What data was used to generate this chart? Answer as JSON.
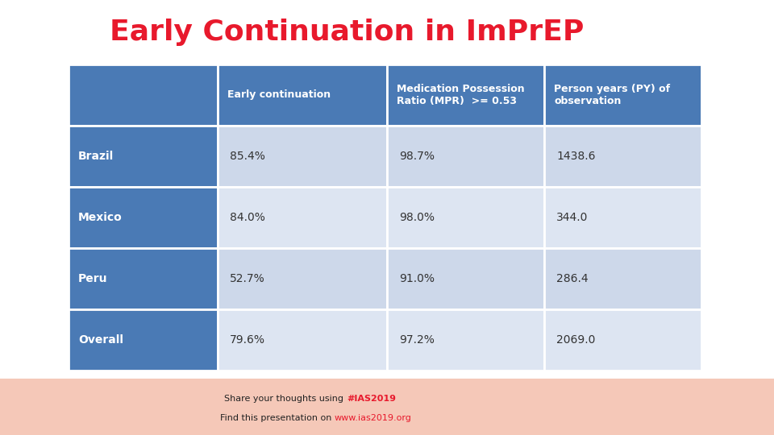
{
  "title": "Early Continuation in ImPrEP",
  "title_color": "#e8192c",
  "bg_color": "#ffffff",
  "footer_bg_left": "#f2c4b0",
  "footer_bg_right": "#f8ddd5",
  "header_bg": "#4a7ab5",
  "row_label_bg": "#4a7ab5",
  "row_data_bg_odd": "#cdd8ea",
  "row_data_bg_even": "#dde5f2",
  "col_headers": [
    "Early continuation",
    "Medication Possession\nRatio (MPR)  >= 0.53",
    "Person years (PY) of\nobservation"
  ],
  "row_labels": [
    "Brazil",
    "Mexico",
    "Peru",
    "Overall"
  ],
  "table_data": [
    [
      "85.4%",
      "98.7%",
      "1438.6"
    ],
    [
      "84.0%",
      "98.0%",
      "344.0"
    ],
    [
      "52.7%",
      "91.0%",
      "286.4"
    ],
    [
      "79.6%",
      "97.2%",
      "2069.0"
    ]
  ],
  "header_text_color": "#ffffff",
  "row_label_text_color": "#ffffff",
  "data_text_color": "#333333",
  "footer_text1": "Share your thoughts using ",
  "footer_text1_bold": "#IAS2019",
  "footer_text2": "Find this presentation on ",
  "footer_text2_link": "www.ias2019.org"
}
